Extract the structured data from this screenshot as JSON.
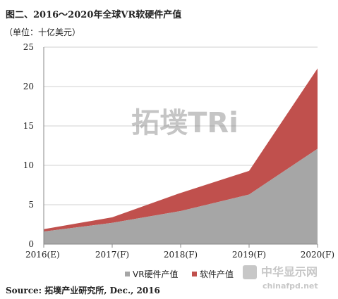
{
  "title": "图二、2016～2020年全球VR软硬件产值",
  "unit_label": "（单位：十亿美元）",
  "source": "Source: 拓墣产业研究所, Dec., 2016",
  "watermark": {
    "center": "拓墣TRi",
    "corner_cn": "中华显示网",
    "corner_url": "chinafpd.net"
  },
  "colors": {
    "hardware": "#a6a6a6",
    "software": "#c0504d",
    "axis": "#888888",
    "grid": "#d0d0d0"
  },
  "chart_data": {
    "type": "area",
    "stacked": true,
    "categories": [
      "2016(E)",
      "2017(F)",
      "2018(F)",
      "2019(F)",
      "2020(F)"
    ],
    "series": [
      {
        "name": "VR硬件产值",
        "values": [
          1.6,
          2.7,
          4.2,
          6.3,
          12.1
        ]
      },
      {
        "name": "软件产值",
        "values": [
          0.3,
          0.7,
          2.3,
          3.0,
          10.2
        ]
      }
    ],
    "yticks": [
      0,
      5,
      10,
      15,
      20,
      25
    ],
    "ylim": [
      0,
      25
    ],
    "grid": true,
    "legend": "bottom"
  }
}
